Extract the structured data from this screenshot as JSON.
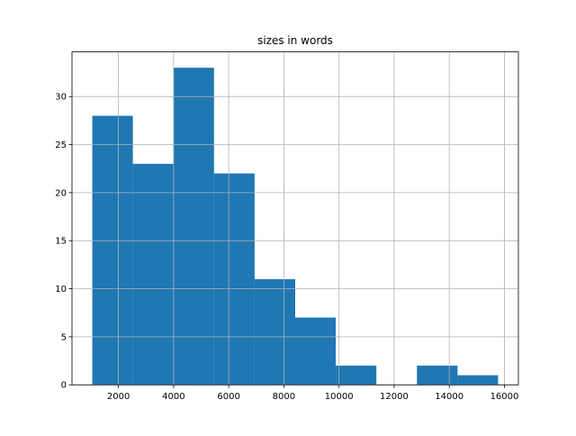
{
  "chart_data": {
    "type": "histogram",
    "title": "sizes in words",
    "bins": [
      1051,
      2523,
      3995,
      5467,
      6939,
      8411,
      9883,
      11355,
      12827,
      14299,
      15771
    ],
    "counts": [
      28,
      23,
      33,
      22,
      11,
      7,
      2,
      0,
      2,
      1
    ],
    "color": "#1f77b4",
    "xlim": [
      315,
      16507
    ],
    "ylim": [
      0,
      34.65
    ],
    "xticks": [
      2000,
      4000,
      6000,
      8000,
      10000,
      12000,
      14000,
      16000
    ],
    "yticks": [
      0,
      5,
      10,
      15,
      20,
      25,
      30
    ],
    "grid": true
  }
}
